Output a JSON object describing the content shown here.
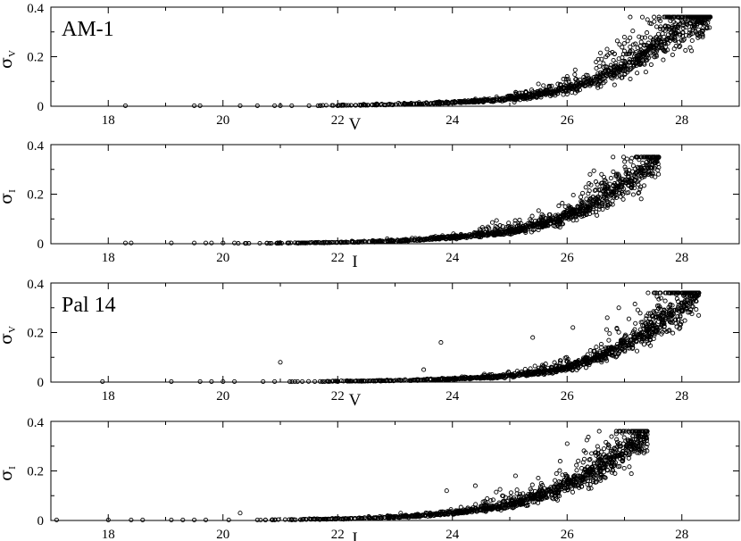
{
  "chart_data": [
    {
      "type": "scatter",
      "title": "AM-1",
      "xlabel": "V",
      "ylabel": {
        "symbol": "σ",
        "subscript": "V"
      },
      "xlim": [
        17,
        29
      ],
      "ylim": [
        0,
        0.4
      ],
      "xticks": [
        "18",
        "20",
        "22",
        "24",
        "26",
        "28"
      ],
      "yticks": [
        "0",
        "0.2",
        "0.4"
      ],
      "grid": false,
      "sparse_points": [
        [
          18.3,
          0.002
        ],
        [
          19.5,
          0.002
        ],
        [
          19.6,
          0.002
        ],
        [
          20.3,
          0.002
        ],
        [
          20.6,
          0.002
        ],
        [
          20.9,
          0.002
        ],
        [
          21.0,
          0.002
        ],
        [
          21.2,
          0.002
        ],
        [
          21.5,
          0.002
        ],
        [
          21.7,
          0.002
        ],
        [
          22.0,
          0.002
        ],
        [
          22.4,
          0.003
        ],
        [
          27.1,
          0.36
        ],
        [
          27.4,
          0.35
        ],
        [
          27.8,
          0.345
        ],
        [
          28.0,
          0.36
        ],
        [
          28.2,
          0.34
        ],
        [
          26.6,
          0.19
        ],
        [
          26.0,
          0.12
        ],
        [
          25.5,
          0.09
        ]
      ],
      "trend": {
        "model": "exponential",
        "x_start": 21.0,
        "x_end": 28.5,
        "points": [
          [
            22,
            0.003
          ],
          [
            24,
            0.015
          ],
          [
            25,
            0.03
          ],
          [
            26,
            0.07
          ],
          [
            27,
            0.16
          ],
          [
            27.5,
            0.23
          ],
          [
            28,
            0.31
          ],
          [
            28.5,
            0.36
          ]
        ]
      },
      "dense_x_range": [
        21.0,
        28.5
      ],
      "n_dense": 1100,
      "y_cap": 0.36
    },
    {
      "type": "scatter",
      "title": "",
      "xlabel": "I",
      "ylabel": {
        "symbol": "σ",
        "subscript": "I"
      },
      "xlim": [
        17,
        29
      ],
      "ylim": [
        0,
        0.4
      ],
      "xticks": [
        "18",
        "20",
        "22",
        "24",
        "26",
        "28"
      ],
      "yticks": [
        "0",
        "0.2",
        "0.4"
      ],
      "grid": false,
      "sparse_points": [
        [
          18.3,
          0.003
        ],
        [
          18.4,
          0.003
        ],
        [
          19.1,
          0.003
        ],
        [
          19.5,
          0.003
        ],
        [
          19.7,
          0.003
        ],
        [
          19.8,
          0.003
        ],
        [
          20.0,
          0.003
        ],
        [
          20.2,
          0.003
        ],
        [
          26.4,
          0.28
        ],
        [
          26.6,
          0.28
        ],
        [
          26.5,
          0.25
        ],
        [
          27.2,
          0.36
        ]
      ],
      "trend": {
        "model": "exponential",
        "x_start": 20.0,
        "x_end": 27.6,
        "points": [
          [
            22,
            0.005
          ],
          [
            24,
            0.025
          ],
          [
            25,
            0.05
          ],
          [
            26,
            0.11
          ],
          [
            27,
            0.24
          ],
          [
            27.6,
            0.34
          ]
        ]
      },
      "dense_x_range": [
        20.0,
        27.6
      ],
      "n_dense": 1100,
      "y_cap": 0.35
    },
    {
      "type": "scatter",
      "title": "Pal 14",
      "xlabel": "V",
      "ylabel": {
        "symbol": "σ",
        "subscript": "V"
      },
      "xlim": [
        17,
        29
      ],
      "ylim": [
        0,
        0.4
      ],
      "xticks": [
        "18",
        "20",
        "22",
        "24",
        "26",
        "28"
      ],
      "yticks": [
        "0",
        "0.2",
        "0.4"
      ],
      "grid": false,
      "sparse_points": [
        [
          17.9,
          0.002
        ],
        [
          19.1,
          0.002
        ],
        [
          19.6,
          0.002
        ],
        [
          19.8,
          0.002
        ],
        [
          20.0,
          0.002
        ],
        [
          20.2,
          0.002
        ],
        [
          20.7,
          0.002
        ],
        [
          20.9,
          0.002
        ],
        [
          21.0,
          0.08
        ],
        [
          21.3,
          0.002
        ],
        [
          21.6,
          0.002
        ],
        [
          22.0,
          0.002
        ],
        [
          23.8,
          0.16
        ],
        [
          23.5,
          0.05
        ],
        [
          25.4,
          0.18
        ],
        [
          26.1,
          0.22
        ],
        [
          26.7,
          0.26
        ],
        [
          26.9,
          0.3
        ]
      ],
      "trend": {
        "model": "exponential",
        "x_start": 21.0,
        "x_end": 28.3,
        "points": [
          [
            22,
            0.003
          ],
          [
            24,
            0.012
          ],
          [
            25,
            0.025
          ],
          [
            26,
            0.06
          ],
          [
            27,
            0.15
          ],
          [
            27.5,
            0.22
          ],
          [
            28,
            0.3
          ],
          [
            28.3,
            0.36
          ]
        ]
      },
      "dense_x_range": [
        21.0,
        28.3
      ],
      "n_dense": 1100,
      "y_cap": 0.36
    },
    {
      "type": "scatter",
      "title": "",
      "xlabel": "I",
      "ylabel": {
        "symbol": "σ",
        "subscript": "I"
      },
      "xlim": [
        17,
        29
      ],
      "ylim": [
        0,
        0.4
      ],
      "xticks": [
        "18",
        "20",
        "22",
        "24",
        "26",
        "28"
      ],
      "yticks": [
        "0",
        "0.2",
        "0.4"
      ],
      "grid": false,
      "sparse_points": [
        [
          17.1,
          0.002
        ],
        [
          18.0,
          0.002
        ],
        [
          18.4,
          0.002
        ],
        [
          18.6,
          0.002
        ],
        [
          19.1,
          0.002
        ],
        [
          19.3,
          0.002
        ],
        [
          19.5,
          0.002
        ],
        [
          19.7,
          0.002
        ],
        [
          20.1,
          0.002
        ],
        [
          20.3,
          0.03
        ],
        [
          20.6,
          0.002
        ],
        [
          20.9,
          0.002
        ],
        [
          21.2,
          0.002
        ],
        [
          23.9,
          0.12
        ],
        [
          24.4,
          0.14
        ],
        [
          25.1,
          0.18
        ],
        [
          26.0,
          0.31
        ]
      ],
      "trend": {
        "model": "exponential",
        "x_start": 20.5,
        "x_end": 27.4,
        "points": [
          [
            22,
            0.006
          ],
          [
            24,
            0.03
          ],
          [
            25,
            0.065
          ],
          [
            26,
            0.14
          ],
          [
            27,
            0.28
          ],
          [
            27.4,
            0.34
          ]
        ]
      },
      "dense_x_range": [
        20.5,
        27.4
      ],
      "n_dense": 1100,
      "y_cap": 0.36
    }
  ]
}
